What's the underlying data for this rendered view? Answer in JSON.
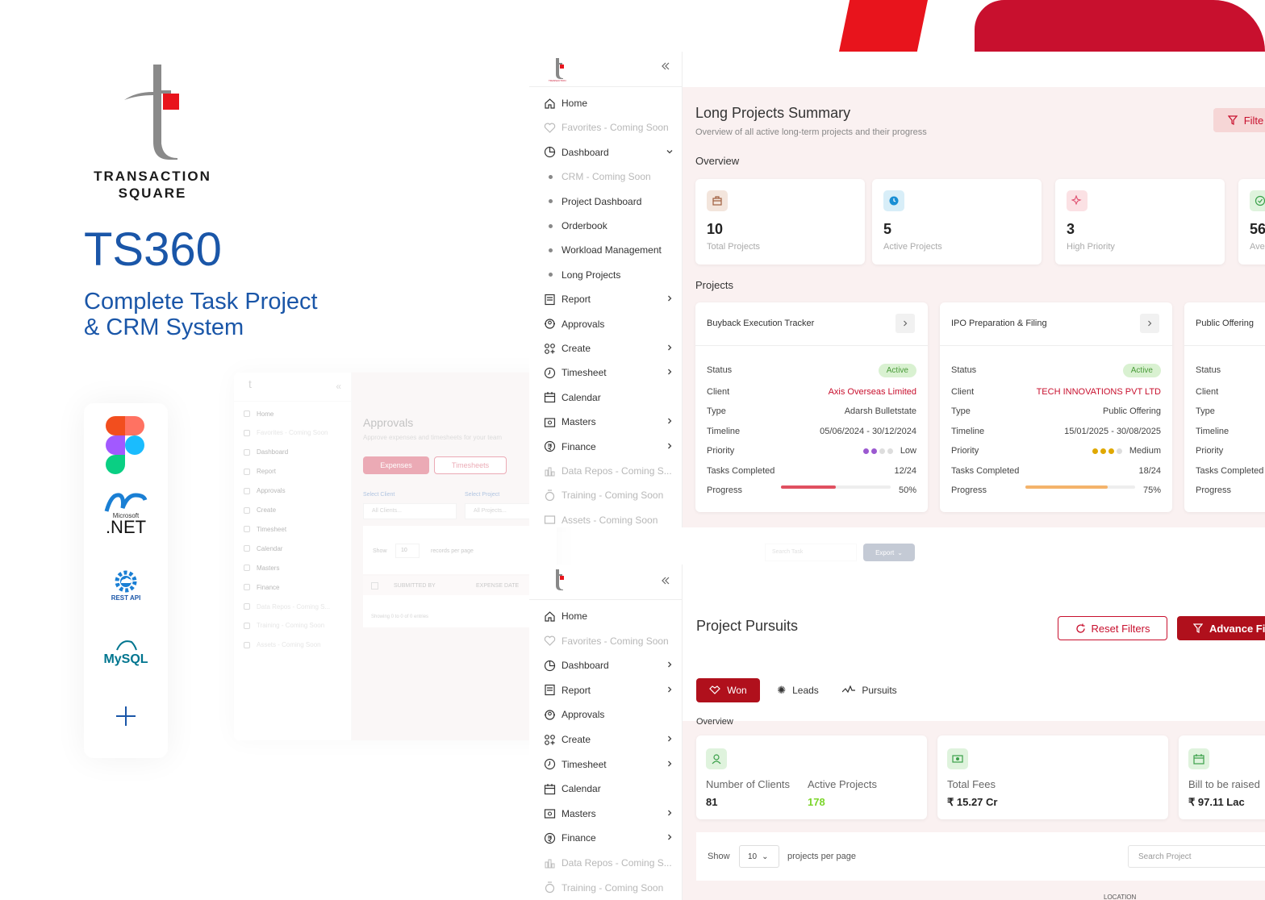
{
  "brand": {
    "logo_line1": "TRANSACTION",
    "logo_line2": "SQUARE",
    "product": "TS360",
    "tagline_line1": "Complete Task Project",
    "tagline_line2": "& CRM System",
    "tech_labels": {
      "dotnet_small": "Microsoft",
      "dotnet": ".NET",
      "rest": "REST API",
      "mysql": "MySQL"
    }
  },
  "colors": {
    "brand_red": "#c8102e",
    "accent_red": "#e8141c",
    "brand_blue": "#1a56a8",
    "success": "#4a9b3a"
  },
  "panel1": {
    "sidebar": [
      {
        "label": "Home",
        "icon": "home-icon"
      },
      {
        "label": "Favorites - Coming Soon",
        "icon": "heart-icon",
        "dim": true
      },
      {
        "label": "Dashboard",
        "icon": "dashboard-icon"
      },
      {
        "label": "CRM - Coming Soon",
        "dim": true,
        "sub": true
      },
      {
        "label": "Project Dashboard",
        "sub": true
      },
      {
        "label": "Orderbook",
        "sub": true
      },
      {
        "label": "Workload Management",
        "sub": true
      },
      {
        "label": "Long Projects",
        "sub": true
      },
      {
        "label": "Report",
        "icon": "report-icon"
      },
      {
        "label": "Approvals",
        "icon": "approvals-icon"
      },
      {
        "label": "Create",
        "icon": "create-icon"
      },
      {
        "label": "Timesheet",
        "icon": "clock-icon"
      },
      {
        "label": "Calendar",
        "icon": "calendar-icon"
      },
      {
        "label": "Masters",
        "icon": "masters-icon"
      },
      {
        "label": "Finance",
        "icon": "finance-icon"
      },
      {
        "label": "Data Repos - Coming S...",
        "icon": "data-icon",
        "dim": true
      },
      {
        "label": "Training - Coming Soon",
        "icon": "training-icon",
        "dim": true
      },
      {
        "label": "Assets - Coming Soon",
        "icon": "assets-icon",
        "dim": true
      }
    ],
    "title": "Long Projects Summary",
    "subtitle": "Overview of all active long-term projects and their progress",
    "filter_label": "Filte",
    "overview_label": "Overview",
    "stats": [
      {
        "value": "10",
        "label": "Total Projects",
        "icon": "briefcase-icon"
      },
      {
        "value": "5",
        "label": "Active Projects",
        "icon": "clock-icon"
      },
      {
        "value": "3",
        "label": "High Priority",
        "icon": "sparkle-icon"
      },
      {
        "value": "56",
        "label": "Ave",
        "icon": "check-icon"
      }
    ],
    "projects_label": "Projects",
    "row_labels": {
      "status": "Status",
      "client": "Client",
      "type": "Type",
      "timeline": "Timeline",
      "priority": "Priority",
      "tasks": "Tasks Completed",
      "progress": "Progress"
    },
    "projects": [
      {
        "name": "Buyback Execution Tracker",
        "status": "Active",
        "client": "Axis Overseas Limited",
        "type": "Adarsh Bulletstate",
        "timeline": "05/06/2024 - 30/12/2024",
        "priority": "Low",
        "tasks": "12/24",
        "progress": 0.5,
        "progress_label": "50%"
      },
      {
        "name": "IPO Preparation & Filing",
        "status": "Active",
        "client": "TECH INNOVATIONS PVT LTD",
        "type": "Public Offering",
        "timeline": "15/01/2025 - 30/08/2025",
        "priority": "Medium",
        "tasks": "18/24",
        "progress": 0.75,
        "progress_label": "75%"
      },
      {
        "name": "Public Offering"
      }
    ]
  },
  "panel_faded": {
    "sidebar": [
      "Home",
      "Favorites - Coming Soon",
      "Dashboard",
      "Report",
      "Approvals",
      "Create",
      "Timesheet",
      "Calendar",
      "Masters",
      "Finance",
      "Data Repos - Coming S...",
      "Training - Coming Soon",
      "Assets - Coming Soon"
    ],
    "title": "Approvals",
    "subtitle": "Approve expenses and timesheets for your team",
    "tab_expenses": "Expenses",
    "tab_timesheets": "Timesheets",
    "select_client_label": "Select Client",
    "select_client_value": "All Clients...",
    "select_project_label": "Select Project",
    "select_project_value": "All Projects...",
    "show_label": "Show",
    "show_value": "10",
    "records_label": "records per page",
    "search_placeholder": "Search Task",
    "export_label": "Export",
    "col_submitted": "SUBMITTED BY",
    "col_expense_date": "EXPENSE DATE",
    "showing": "Showing 0 to 0 of 0 entries"
  },
  "panel2": {
    "sidebar": [
      {
        "label": "Home",
        "icon": "home-icon"
      },
      {
        "label": "Favorites - Coming Soon",
        "icon": "heart-icon",
        "dim": true
      },
      {
        "label": "Dashboard",
        "icon": "dashboard-icon"
      },
      {
        "label": "Report",
        "icon": "report-icon"
      },
      {
        "label": "Approvals",
        "icon": "approvals-icon"
      },
      {
        "label": "Create",
        "icon": "create-icon"
      },
      {
        "label": "Timesheet",
        "icon": "clock-icon"
      },
      {
        "label": "Calendar",
        "icon": "calendar-icon"
      },
      {
        "label": "Masters",
        "icon": "masters-icon"
      },
      {
        "label": "Finance",
        "icon": "finance-icon"
      },
      {
        "label": "Data Repos - Coming S...",
        "icon": "data-icon",
        "dim": true
      },
      {
        "label": "Training - Coming Soon",
        "icon": "training-icon",
        "dim": true
      }
    ],
    "title": "Project Pursuits",
    "reset_label": "Reset Filters",
    "advance_label": "Advance Fi",
    "tabs": [
      "Won",
      "Leads",
      "Pursuits"
    ],
    "overview_label": "Overview",
    "clients_label": "Number of Clients",
    "clients_value": "81",
    "active_label": "Active Projects",
    "active_value": "178",
    "fees_label": "Total Fees",
    "fees_value": "₹ 15.27 Cr",
    "bill_label": "Bill to be raised",
    "bill_value": "₹ 97.11 Lac",
    "show_label": "Show",
    "show_value": "10",
    "per_page_label": "projects per page",
    "search_placeholder": "Search Project",
    "location_col": "LOCATION"
  }
}
